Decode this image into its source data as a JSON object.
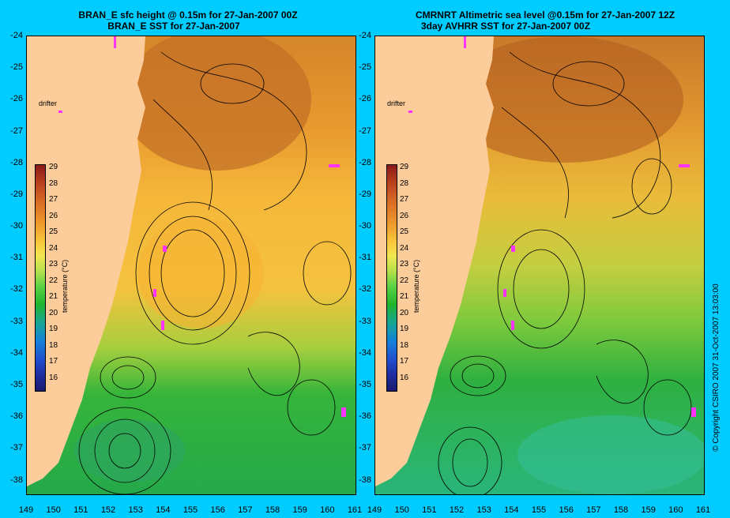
{
  "left_panel": {
    "title_line1": "BRAN_E sfc height @ 0.15m for 27-Jan-2007 00Z",
    "title_line2": "BRAN_E SST for 27-Jan-2007",
    "drifter_label": "drifter"
  },
  "right_panel": {
    "title_line1": "CMRNRT Altimetric sea level  @0.15m  for 27-Jan-2007 12Z",
    "title_line2": "3day AVHRR SST for 27-Jan-2007 00Z",
    "drifter_label": "drifter"
  },
  "axes": {
    "y_ticks": [
      "-24",
      "-25",
      "-26",
      "-27",
      "-28",
      "-29",
      "-30",
      "-31",
      "-32",
      "-33",
      "-34",
      "-35",
      "-36",
      "-37",
      "-38"
    ],
    "x_ticks": [
      "149",
      "150",
      "151",
      "152",
      "153",
      "154",
      "155",
      "156",
      "157",
      "158",
      "159",
      "160",
      "161"
    ]
  },
  "colorbar": {
    "label": "temperature (°C)",
    "ticks": [
      "29",
      "28",
      "27",
      "26",
      "25",
      "24",
      "23",
      "22",
      "21",
      "20",
      "19",
      "18",
      "17",
      "16"
    ]
  },
  "copyright": "© Copyright CSIRO 2007   31-Oct-2007 13:03:00",
  "colors": {
    "background": "#00ccff",
    "land": "#fccd9a",
    "drifter": "#ff33ff"
  }
}
